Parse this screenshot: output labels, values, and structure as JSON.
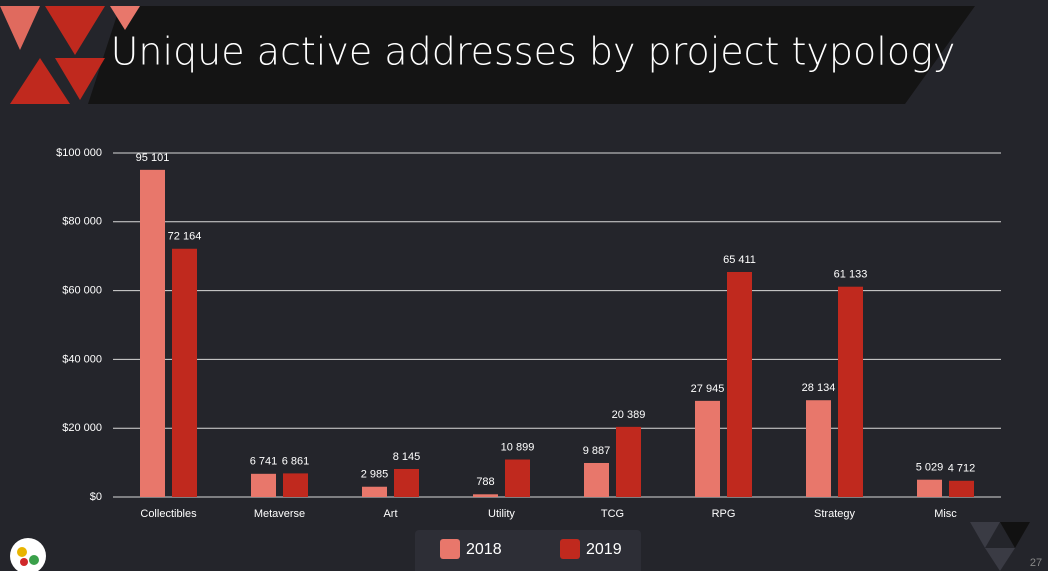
{
  "chart_data": {
    "type": "bar",
    "title": "Unique active addresses by project typology",
    "categories": [
      "Collectibles",
      "Metaverse",
      "Art",
      "Utility",
      "TCG",
      "RPG",
      "Strategy",
      "Misc"
    ],
    "series": [
      {
        "name": "2018",
        "color": "#e8776b",
        "values": [
          95101,
          6741,
          2985,
          788,
          9887,
          27945,
          28134,
          5029
        ],
        "value_labels": [
          "95 101",
          "6 741",
          "2 985",
          "788",
          "9 887",
          "27 945",
          "28 134",
          "5 029"
        ]
      },
      {
        "name": "2019",
        "color": "#c0291e",
        "values": [
          72164,
          6861,
          8145,
          10899,
          20389,
          65411,
          61133,
          4712
        ],
        "value_labels": [
          "72 164",
          "6 861",
          "8 145",
          "10 899",
          "20 389",
          "65 411",
          "61 133",
          "4 712"
        ]
      }
    ],
    "ylim": [
      0,
      100000
    ],
    "yticks": [
      {
        "value": 0,
        "label": "$0"
      },
      {
        "value": 20000,
        "label": "$20 000"
      },
      {
        "value": 40000,
        "label": "$40 000"
      },
      {
        "value": 60000,
        "label": "$60 000"
      },
      {
        "value": 80000,
        "label": "$80 000"
      },
      {
        "value": 100000,
        "label": "$100 000"
      }
    ],
    "grid": true,
    "legend": "bottom"
  },
  "page_number": "27"
}
